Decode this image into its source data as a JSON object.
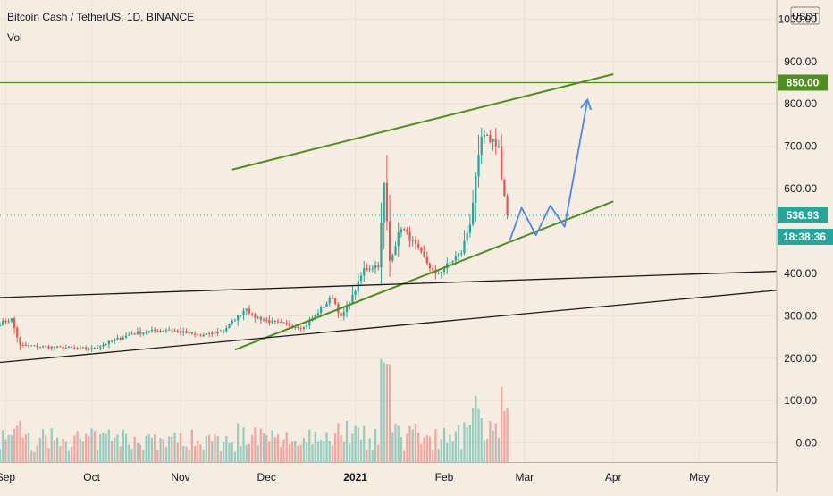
{
  "header": {
    "symbol_title": "Bitcoin Cash / TetherUS, 1D, BINANCE",
    "indicator_label": "Vol"
  },
  "price_scale": {
    "currency": "USDT",
    "ticks": [
      "1000.00",
      "900.00",
      "800.00",
      "700.00",
      "600.00",
      "400.00",
      "300.00",
      "200.00",
      "100.00",
      "0.00"
    ]
  },
  "time_scale": {
    "ticks": [
      "Sep",
      "Oct",
      "Nov",
      "Dec",
      "2021",
      "Feb",
      "Mar",
      "Apr",
      "May"
    ]
  },
  "badges": {
    "target_level": "850.00",
    "last_price": "536.93",
    "countdown": "18:38:36"
  },
  "colors": {
    "background": "#f5ece2",
    "grid": "#ebe2d7",
    "up_candle": "#26a69a",
    "down_candle": "#ef5350",
    "channel": "#4e8f1e",
    "horizontal_level": "#4e8f1e",
    "support_trendline": "#1a1a1a",
    "projection": "#4f86ec",
    "last_price": "#26a69a"
  },
  "chart_data": {
    "type": "candlestick",
    "symbol": "BCHUSDT",
    "interval": "1D",
    "exchange": "BINANCE",
    "x_axis": {
      "type": "date",
      "range": [
        "2020-08-30",
        "2021-05-28"
      ]
    },
    "y_axis": {
      "unit": "USDT",
      "range": [
        -45,
        1045
      ]
    },
    "last_price": 536.93,
    "horizontal_levels": [
      850
    ],
    "ohlc_keyframes": [
      {
        "date": "2020-08-30",
        "close": 282
      },
      {
        "date": "2020-09-03",
        "close": 292
      },
      {
        "date": "2020-09-06",
        "close": 230
      },
      {
        "date": "2020-09-20",
        "close": 225
      },
      {
        "date": "2020-10-01",
        "close": 222
      },
      {
        "date": "2020-10-15",
        "close": 258
      },
      {
        "date": "2020-10-28",
        "close": 268
      },
      {
        "date": "2020-11-08",
        "close": 252
      },
      {
        "date": "2020-11-16",
        "close": 265
      },
      {
        "date": "2020-11-24",
        "close": 320
      },
      {
        "date": "2020-11-26",
        "close": 300
      },
      {
        "date": "2020-12-03",
        "close": 285
      },
      {
        "date": "2020-12-14",
        "close": 272
      },
      {
        "date": "2020-12-24",
        "close": 345
      },
      {
        "date": "2020-12-27",
        "close": 295
      },
      {
        "date": "2020-12-31",
        "close": 345
      },
      {
        "date": "2021-01-04",
        "close": 410
      },
      {
        "date": "2021-01-09",
        "close": 420
      },
      {
        "date": "2021-01-11",
        "close": 610
      },
      {
        "date": "2021-01-13",
        "close": 430
      },
      {
        "date": "2021-01-17",
        "close": 510
      },
      {
        "date": "2021-01-22",
        "close": 465
      },
      {
        "date": "2021-01-29",
        "close": 395
      },
      {
        "date": "2021-02-07",
        "close": 450
      },
      {
        "date": "2021-02-10",
        "close": 520
      },
      {
        "date": "2021-02-14",
        "close": 720
      },
      {
        "date": "2021-02-18",
        "close": 715
      },
      {
        "date": "2021-02-20",
        "close": 700
      },
      {
        "date": "2021-02-21",
        "close": 620
      },
      {
        "date": "2021-02-23",
        "close": 537
      }
    ],
    "annotations": [
      {
        "type": "trendline",
        "name": "channel-upper",
        "points": [
          [
            "2020-11-19",
            645
          ],
          [
            "2021-04-01",
            870
          ]
        ]
      },
      {
        "type": "trendline",
        "name": "channel-lower",
        "points": [
          [
            "2020-11-20",
            220
          ],
          [
            "2021-04-01",
            570
          ]
        ]
      },
      {
        "type": "trendline",
        "name": "support-upper",
        "points": [
          [
            "2020-08-30",
            343
          ],
          [
            "2021-05-28",
            405
          ]
        ]
      },
      {
        "type": "trendline",
        "name": "support-lower",
        "points": [
          [
            "2020-08-30",
            190
          ],
          [
            "2021-05-28",
            360
          ]
        ]
      },
      {
        "type": "path",
        "name": "projection",
        "points": [
          [
            "2021-02-24",
            480
          ],
          [
            "2021-02-28",
            555
          ],
          [
            "2021-03-05",
            490
          ],
          [
            "2021-03-10",
            560
          ],
          [
            "2021-03-15",
            510
          ],
          [
            "2021-03-23",
            810
          ]
        ]
      }
    ]
  }
}
